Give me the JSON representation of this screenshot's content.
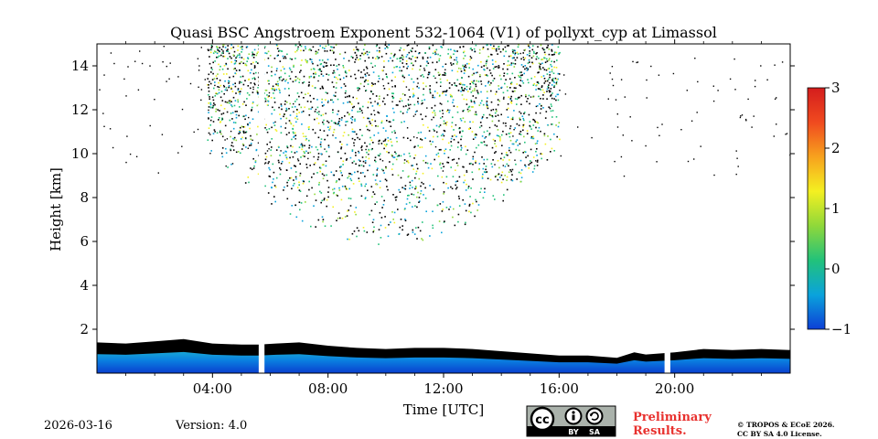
{
  "chart_data": {
    "type": "heatmap",
    "title": "Quasi BSC Angstroem Exponent 532-1064 (V1) of pollyxt_cyp at Limassol",
    "xlabel": "Time [UTC]",
    "ylabel": "Height [km]",
    "xlim": [
      0,
      24
    ],
    "ylim": [
      0,
      15
    ],
    "x_ticks": [
      {
        "value": 4,
        "label": "04:00"
      },
      {
        "value": 8,
        "label": "08:00"
      },
      {
        "value": 12,
        "label": "12:00"
      },
      {
        "value": 16,
        "label": "16:00"
      },
      {
        "value": 20,
        "label": "20:00"
      }
    ],
    "y_ticks": [
      {
        "value": 2,
        "label": "2"
      },
      {
        "value": 4,
        "label": "4"
      },
      {
        "value": 6,
        "label": "6"
      },
      {
        "value": 8,
        "label": "8"
      },
      {
        "value": 10,
        "label": "10"
      },
      {
        "value": 12,
        "label": "12"
      },
      {
        "value": 14,
        "label": "14"
      }
    ],
    "colorbar": {
      "min": -1,
      "max": 3,
      "ticks": [
        {
          "value": -1,
          "label": "−1"
        },
        {
          "value": 0,
          "label": "0"
        },
        {
          "value": 1,
          "label": "1"
        },
        {
          "value": 2,
          "label": "2"
        },
        {
          "value": 3,
          "label": "3"
        }
      ],
      "colors": [
        "#0d3fd6",
        "#0aa3dc",
        "#22c27a",
        "#8fd83a",
        "#f4f021",
        "#f7a21e",
        "#f04a1f",
        "#d41d1d"
      ]
    },
    "boundary_layer_top_km": [
      [
        0,
        1.4
      ],
      [
        1,
        1.35
      ],
      [
        2,
        1.45
      ],
      [
        3,
        1.55
      ],
      [
        4,
        1.35
      ],
      [
        5,
        1.3
      ],
      [
        5.6,
        1.3
      ],
      [
        6.2,
        1.35
      ],
      [
        7,
        1.4
      ],
      [
        8,
        1.25
      ],
      [
        9,
        1.15
      ],
      [
        10,
        1.1
      ],
      [
        11,
        1.15
      ],
      [
        12,
        1.15
      ],
      [
        13,
        1.1
      ],
      [
        14,
        1.0
      ],
      [
        15,
        0.9
      ],
      [
        16,
        0.8
      ],
      [
        17,
        0.8
      ],
      [
        18,
        0.7
      ],
      [
        18.6,
        0.95
      ],
      [
        19,
        0.85
      ],
      [
        20,
        0.95
      ],
      [
        21,
        1.1
      ],
      [
        22,
        1.05
      ],
      [
        23,
        1.1
      ],
      [
        24,
        1.05
      ]
    ],
    "data_gaps_hours": [
      [
        5.6,
        5.8
      ],
      [
        19.65,
        19.85
      ]
    ],
    "scatter_cloud": {
      "time_range": [
        3.8,
        16.0
      ],
      "height_range": [
        5.8,
        15.0
      ],
      "typical_value": -0.6
    }
  },
  "footer": {
    "date": "2026-03-16",
    "version": "Version: 4.0",
    "preliminary_line1": "Preliminary",
    "preliminary_line2": "Results.",
    "copyright_line1": "© TROPOS & ECoE 2026.",
    "copyright_line2": "CC BY SA 4.0 License.",
    "license_badge": {
      "cc": "cc",
      "by": "BY",
      "sa": "SA"
    }
  }
}
